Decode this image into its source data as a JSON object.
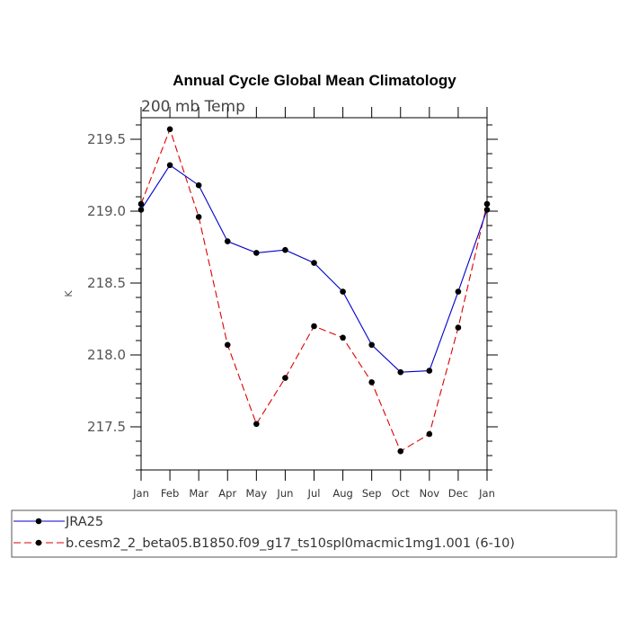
{
  "chart_data": {
    "type": "line",
    "title": "Annual Cycle Global Mean Climatology",
    "subtitle": "200 mb Temp",
    "ylabel": "K",
    "xlabel": "",
    "categories": [
      "Jan",
      "Feb",
      "Mar",
      "Apr",
      "May",
      "Jun",
      "Jul",
      "Aug",
      "Sep",
      "Oct",
      "Nov",
      "Dec",
      "Jan"
    ],
    "ylim": [
      217.2,
      219.65
    ],
    "yticks": [
      217.5,
      218.0,
      218.5,
      219.0,
      219.5
    ],
    "ytick_labels": [
      "217.5",
      "218.0",
      "218.5",
      "219.0",
      "219.5"
    ],
    "series": [
      {
        "name": "JRA25",
        "color": "#0000cc",
        "dash": "solid",
        "values": [
          219.01,
          219.32,
          219.18,
          218.79,
          218.71,
          218.73,
          218.64,
          218.44,
          218.07,
          217.88,
          217.89,
          218.44,
          219.01
        ]
      },
      {
        "name": "b.cesm2_2_beta05.B1850.f09_g17_ts10spl0macmic1mg1.001 (6-10)",
        "color": "#dd0000",
        "dash": "dashed",
        "values": [
          219.05,
          219.57,
          218.96,
          218.07,
          217.52,
          217.84,
          218.2,
          218.12,
          217.81,
          217.33,
          217.45,
          218.19,
          219.05
        ]
      }
    ],
    "legend_position": "bottom"
  }
}
